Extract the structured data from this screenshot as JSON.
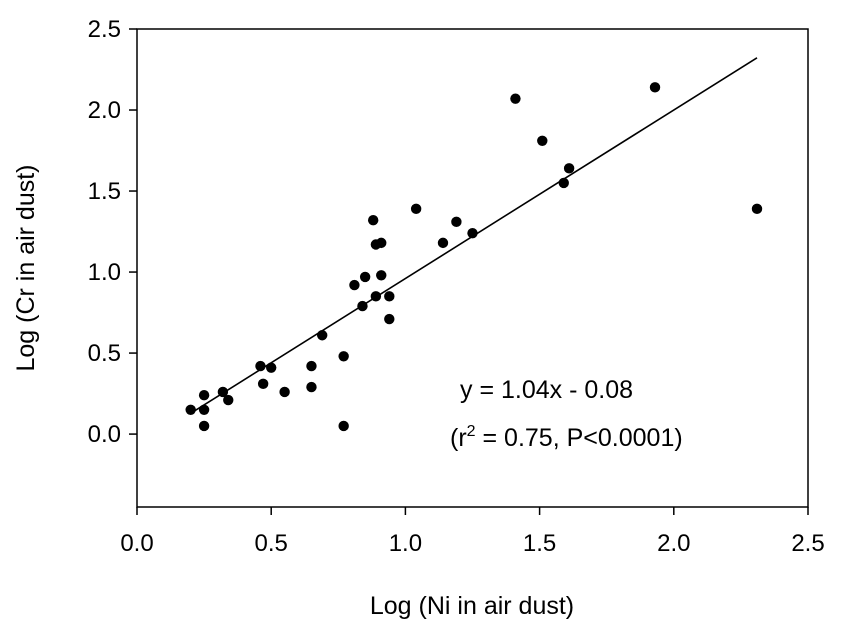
{
  "chart_data": {
    "type": "scatter",
    "xlabel": "Log (Ni in air dust)",
    "ylabel": "Log (Cr in air dust)",
    "xlim": [
      0,
      2.5
    ],
    "ylim": [
      -0.45,
      2.5
    ],
    "x_ticks": [
      "0.0",
      "0.5",
      "1.0",
      "1.5",
      "2.0",
      "2.5"
    ],
    "y_ticks": [
      "0.0",
      "0.5",
      "1.0",
      "1.5",
      "2.0",
      "2.5"
    ],
    "grid": false,
    "series": [
      {
        "points": [
          [
            0.2,
            0.15
          ],
          [
            0.25,
            0.24
          ],
          [
            0.25,
            0.15
          ],
          [
            0.25,
            0.05
          ],
          [
            0.32,
            0.26
          ],
          [
            0.34,
            0.21
          ],
          [
            0.46,
            0.42
          ],
          [
            0.47,
            0.31
          ],
          [
            0.5,
            0.41
          ],
          [
            0.55,
            0.26
          ],
          [
            0.65,
            0.42
          ],
          [
            0.65,
            0.29
          ],
          [
            0.69,
            0.61
          ],
          [
            0.77,
            0.48
          ],
          [
            0.77,
            0.05
          ],
          [
            0.81,
            0.92
          ],
          [
            0.84,
            0.79
          ],
          [
            0.85,
            0.97
          ],
          [
            0.88,
            1.32
          ],
          [
            0.89,
            1.17
          ],
          [
            0.89,
            0.85
          ],
          [
            0.91,
            1.18
          ],
          [
            0.91,
            0.98
          ],
          [
            0.94,
            0.85
          ],
          [
            0.94,
            0.71
          ],
          [
            1.04,
            1.39
          ],
          [
            1.14,
            1.18
          ],
          [
            1.19,
            1.31
          ],
          [
            1.25,
            1.24
          ],
          [
            1.41,
            2.07
          ],
          [
            1.51,
            1.81
          ],
          [
            1.59,
            1.55
          ],
          [
            1.61,
            1.64
          ],
          [
            1.93,
            2.14
          ],
          [
            2.31,
            1.39
          ]
        ]
      }
    ],
    "fit_line": {
      "slope": 1.04,
      "intercept": -0.08,
      "x_range": [
        0.2,
        2.31
      ]
    },
    "annotation": {
      "equation": "y = 1.04x - 0.08",
      "stats_open": "(r",
      "stats_sup": "2",
      "stats_rest": " = 0.75, P<0.0001)"
    }
  }
}
